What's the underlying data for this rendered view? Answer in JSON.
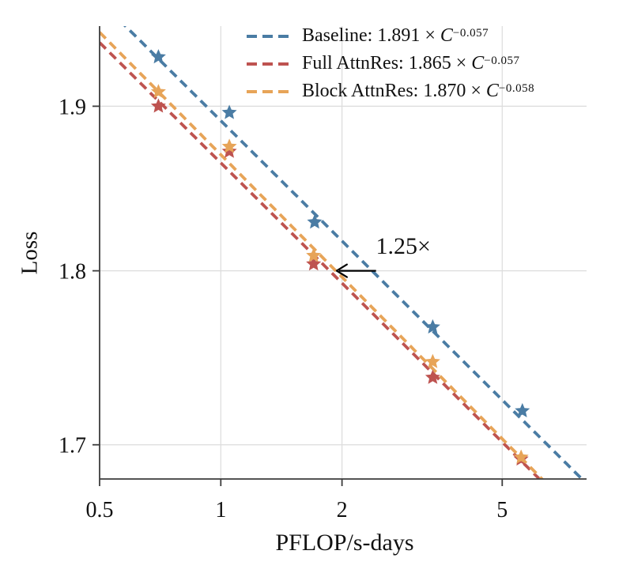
{
  "chart_data": {
    "type": "line",
    "title": "",
    "xlabel": "PFLOP/s-days",
    "ylabel": "Loss",
    "xscale": "log",
    "yscale": "log",
    "xlim": [
      0.5,
      8.1
    ],
    "ylim": [
      1.681,
      1.9507
    ],
    "xticks": [
      {
        "v": 0.5,
        "label": "0.5"
      },
      {
        "v": 1,
        "label": "1"
      },
      {
        "v": 2,
        "label": "2"
      },
      {
        "v": 5,
        "label": "5"
      }
    ],
    "yticks": [
      {
        "v": 1.9,
        "label": "1.9"
      },
      {
        "v": 1.8,
        "label": "1.8"
      },
      {
        "v": 1.7,
        "label": "1.7"
      }
    ],
    "grid": {
      "x": [
        1,
        2,
        5
      ],
      "y": [
        1.9,
        1.8,
        1.7
      ],
      "color": "#dcdcdc"
    },
    "legend": {
      "position": "upper-right-inside",
      "times": " × ",
      "var": "C"
    },
    "series": [
      {
        "name": "Baseline",
        "label": "Baseline: ",
        "coef_display": "1.891",
        "exp_display": "−0.057",
        "fit": {
          "a": 1.891,
          "b": -0.057
        },
        "color": "#4A7CA4",
        "points": [
          [
            0.7,
            1.931
          ],
          [
            1.05,
            1.896
          ],
          [
            1.71,
            1.829
          ],
          [
            3.36,
            1.767
          ],
          [
            5.61,
            1.719
          ]
        ]
      },
      {
        "name": "Full AttnRes",
        "label": "Full AttnRes: ",
        "coef_display": "1.865",
        "exp_display": "−0.057",
        "fit": {
          "a": 1.865,
          "b": -0.057
        },
        "color": "#BE5350",
        "points": [
          [
            0.7,
            1.9
          ],
          [
            1.05,
            1.872
          ],
          [
            1.7,
            1.804
          ],
          [
            3.36,
            1.738
          ],
          [
            5.57,
            1.692
          ]
        ]
      },
      {
        "name": "Block AttnRes",
        "label": "Block AttnRes: ",
        "coef_display": "1.870",
        "exp_display": "−0.058",
        "fit": {
          "a": 1.87,
          "b": -0.058
        },
        "color": "#E7A458",
        "points": [
          [
            0.7,
            1.909
          ],
          [
            1.05,
            1.875
          ],
          [
            1.7,
            1.809
          ],
          [
            3.36,
            1.747
          ],
          [
            5.57,
            1.693
          ]
        ]
      }
    ],
    "annotation": {
      "text": "1.25×",
      "text_x": 2.84,
      "text_y": 1.8145,
      "arrow": {
        "y": 1.8,
        "x_from": 2.43,
        "x_to": 1.94,
        "color": "#000000"
      }
    },
    "style": {
      "spine_color": "#3c3c3c",
      "tick_color": "#3c3c3c",
      "dash": [
        11,
        7
      ],
      "line_width": 3.8,
      "marker": "star"
    }
  }
}
